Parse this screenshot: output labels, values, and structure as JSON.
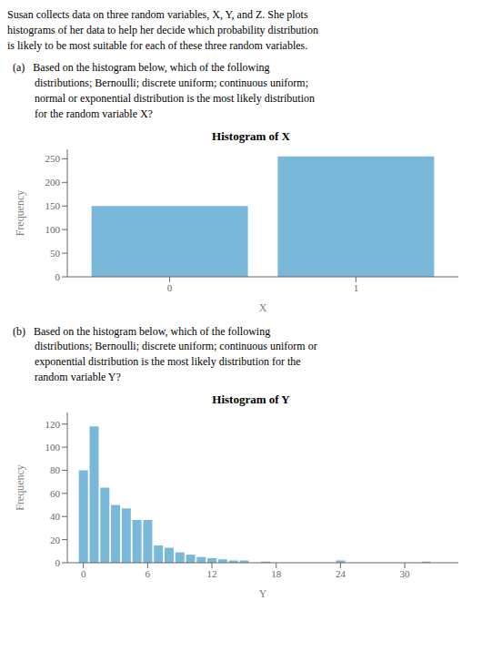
{
  "chart_data": [
    {
      "type": "bar",
      "title": "Histogram of X",
      "annotations": [
        "Susan collects data on three random variables, X, Y, and Z. She plots\nhistograms of her data to help her decide which probability distribution\nis likely to be most suitable for each of these three random variables.",
        "  (a)   Based on the histogram below, which of the following\n          distributions; Bernoulli; discrete uniform; continuous uniform;\n          normal or exponential distribution is the most likely distribution\n          for the random variable X?"
      ],
      "x": [
        0,
        1
      ],
      "values": [
        150,
        255
      ],
      "xlabel": "X",
      "ylabel": "Frequency",
      "xlim": [
        -0.55,
        1.55
      ],
      "xticks": [
        0,
        1
      ],
      "ylim": [
        0,
        270
      ],
      "yticks": [
        0,
        50,
        100,
        150,
        200,
        250
      ],
      "color": "#7ab8d9",
      "grid": false
    },
    {
      "type": "bar",
      "title": "Histogram of Y",
      "annotations": [
        "  (b)   Based on the histogram below, which of the following\n          distributions; Bernoulli; discrete uniform; continuous uniform or\n          exponential distribution is the most likely distribution for the\n          random variable Y?"
      ],
      "x": [
        0,
        1,
        2,
        3,
        4,
        5,
        6,
        7,
        8,
        9,
        10,
        11,
        12,
        13,
        14,
        15,
        17,
        24,
        32
      ],
      "values": [
        80,
        118,
        65,
        50,
        47,
        37,
        37,
        15,
        13,
        9,
        7,
        5,
        4,
        3,
        2,
        2,
        1,
        2,
        1
      ],
      "xlabel": "Y",
      "ylabel": "Frequency",
      "xlim": [
        -1.5,
        35
      ],
      "xticks": [
        0,
        6,
        12,
        18,
        24,
        30
      ],
      "ylim": [
        0,
        130
      ],
      "yticks": [
        0,
        20,
        40,
        60,
        80,
        100,
        120
      ],
      "color": "#7ab8d9",
      "grid": false
    }
  ]
}
